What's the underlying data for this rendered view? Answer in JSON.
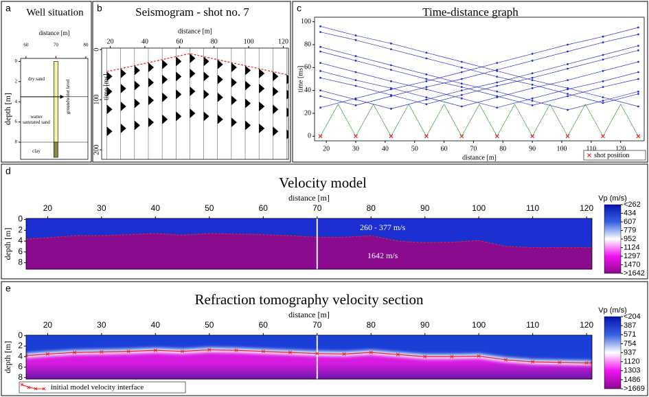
{
  "chart_data": [
    {
      "type": "well",
      "letter": "a",
      "title": "Well situation",
      "xlabel": "distance [m]",
      "ylabel": "depth [m]",
      "xlim": [
        58.2,
        80.7
      ],
      "xticks": [
        60,
        70,
        80
      ],
      "ylim": [
        -0.3,
        9.7
      ],
      "yticks": [
        0,
        2,
        4,
        6,
        8
      ],
      "xaxis": "top",
      "y_direction": "down",
      "layers": [
        {
          "label": "dry sand",
          "top": 0,
          "bottom": 3.5
        },
        {
          "label": "watter saturated sand",
          "top": 3.5,
          "bottom": 8
        },
        {
          "label": "clay",
          "top": 8,
          "bottom": 9.7
        }
      ],
      "well": {
        "x": [
          69.3,
          70.7
        ],
        "depth": [
          0,
          9.5
        ],
        "colors": [
          "#f4f0a0",
          "#8b8a45"
        ]
      },
      "groundwater_level": 3.5,
      "annotation": "groundwater level"
    },
    {
      "type": "seismogram",
      "letter": "b",
      "title": "Seismogram - shot no. 7",
      "xlabel": "distance [m]",
      "ylabel": "time [ms]",
      "xlim": [
        15,
        123
      ],
      "xticks": [
        20,
        40,
        60,
        80,
        100,
        120
      ],
      "ylim": [
        -3,
        219
      ],
      "yticks": [
        0,
        100,
        200
      ],
      "xaxis": "top",
      "y_direction": "down",
      "color": "#e0261f",
      "x": [
        18,
        26,
        34,
        42,
        50,
        58,
        66,
        74,
        82,
        90,
        98,
        106,
        114,
        122
      ],
      "values": [
        44,
        38,
        32,
        26,
        20,
        14,
        8,
        14,
        20,
        26,
        32,
        38,
        44,
        50
      ]
    },
    {
      "type": "line",
      "letter": "c",
      "title": "Time-distance graph",
      "xlabel": "distance [m]",
      "ylabel": "time [ms]",
      "xlim": [
        16,
        128
      ],
      "xticks": [
        20,
        30,
        40,
        50,
        60,
        70,
        80,
        90,
        100,
        110,
        120
      ],
      "ylim": [
        -4,
        104
      ],
      "yticks": [
        0,
        20,
        40,
        60,
        80,
        100
      ],
      "xaxis": "bottom",
      "legend": "lower-right",
      "x": [
        18,
        30,
        42,
        54,
        66,
        78,
        90,
        102,
        114,
        126
      ],
      "series": [
        {
          "color": "#2233cc",
          "marker": "dot",
          "values": [
            25,
            33,
            41,
            48,
            56,
            64,
            72,
            80,
            87,
            95
          ]
        },
        {
          "color": "#2233cc",
          "marker": "dot",
          "values": [
            35,
            27,
            35,
            43,
            50,
            58,
            66,
            74,
            82,
            89
          ]
        },
        {
          "color": "#2233cc",
          "marker": "dot",
          "values": [
            40,
            32,
            24,
            32,
            40,
            47,
            55,
            63,
            71,
            79
          ]
        },
        {
          "color": "#2233cc",
          "marker": "dot",
          "values": [
            51,
            44,
            36,
            28,
            36,
            44,
            51,
            59,
            67,
            75
          ]
        },
        {
          "color": "#2233cc",
          "marker": "dot",
          "values": [
            57,
            49,
            42,
            34,
            26,
            34,
            42,
            49,
            57,
            65
          ]
        },
        {
          "color": "#2233cc",
          "marker": "dot",
          "values": [
            64,
            56,
            48,
            41,
            33,
            25,
            33,
            41,
            48,
            56
          ]
        },
        {
          "color": "#2233cc",
          "marker": "dot",
          "values": [
            74,
            66,
            58,
            50,
            43,
            35,
            27,
            35,
            43,
            50
          ]
        },
        {
          "color": "#2233cc",
          "marker": "dot",
          "values": [
            78,
            70,
            62,
            54,
            46,
            39,
            31,
            23,
            31,
            39
          ]
        },
        {
          "color": "#2233cc",
          "marker": "dot",
          "values": [
            91,
            84,
            76,
            68,
            60,
            52,
            45,
            37,
            29,
            37
          ]
        },
        {
          "color": "#2233cc",
          "marker": "dot",
          "values": [
            96,
            88,
            81,
            73,
            65,
            57,
            49,
            42,
            34,
            26
          ]
        },
        {
          "color": "#3a9a3a",
          "marker": "none",
          "x": [
            18,
            24,
            30,
            36,
            42,
            48,
            54,
            60,
            66,
            72,
            78,
            84,
            90,
            96,
            102,
            108,
            114,
            120,
            126
          ],
          "values": [
            0,
            28,
            0,
            28,
            0,
            28,
            0,
            28,
            0,
            28,
            0,
            28,
            0,
            28,
            0,
            28,
            0,
            28,
            0
          ]
        },
        {
          "name": "shot position",
          "color": "#e0261f",
          "marker": "x",
          "values": [
            0,
            0,
            0,
            0,
            0,
            0,
            0,
            0,
            0,
            0
          ]
        }
      ]
    },
    {
      "type": "velocity-section",
      "letter": "d",
      "title": "Velocity model",
      "xlabel": "distance [m]",
      "ylabel": "depth [m]",
      "xlim": [
        16,
        121
      ],
      "xticks": [
        20,
        30,
        40,
        50,
        60,
        70,
        80,
        90,
        100,
        110,
        120
      ],
      "ylim": [
        -0.2,
        9.2
      ],
      "yticks": [
        0,
        2,
        4,
        6,
        8
      ],
      "xaxis": "top",
      "y_direction": "down",
      "well_x": 70,
      "layers": [
        {
          "label": "260 - 377 m/s",
          "color": "#1c30d2"
        },
        {
          "label": "1642 m/s",
          "color": "#8a0b8e"
        }
      ],
      "interface": {
        "color": "#e0261f",
        "x": [
          16,
          20,
          25,
          30,
          35,
          40,
          45,
          50,
          55,
          60,
          65,
          70,
          75,
          80,
          85,
          90,
          95,
          100,
          105,
          110,
          115,
          120,
          121
        ],
        "values": [
          3.6,
          3.4,
          3.0,
          3.0,
          2.8,
          2.6,
          2.9,
          2.6,
          2.7,
          2.8,
          3.0,
          3.3,
          3.3,
          3.0,
          4.0,
          4.3,
          4.2,
          3.9,
          5.0,
          5.2,
          5.2,
          5.2,
          5.2
        ]
      },
      "colorbar": {
        "title": "Vp (m/s)",
        "clim": [
          262,
          1642
        ],
        "colors": [
          "#0b12b0",
          "#3560e0",
          "#ffffff",
          "#f012f0",
          "#8a0b8e"
        ],
        "ticks": [
          {
            "value": 262,
            "label": "<262"
          },
          434,
          607,
          779,
          952,
          1124,
          1297,
          1470,
          {
            "value": 1642,
            "label": ">1642"
          }
        ]
      }
    },
    {
      "type": "tomography",
      "letter": "e",
      "title": "Refraction tomography velocity section",
      "xlabel": "distance [m]",
      "ylabel": "depth [m]",
      "xlim": [
        16,
        121
      ],
      "xticks": [
        20,
        30,
        40,
        50,
        60,
        70,
        80,
        90,
        100,
        110,
        120
      ],
      "ylim": [
        -0.1,
        8.3
      ],
      "yticks": [
        0,
        2,
        4,
        6,
        8
      ],
      "xaxis": "top",
      "y_direction": "down",
      "well_x": 70,
      "legend": "lower-left",
      "layer_colors": [
        "#1b3fd6",
        "#d81be0",
        "#6a16a8"
      ],
      "interface": {
        "name": "initial model velocity interface",
        "color": "#e0261f",
        "x": [
          16,
          20,
          25,
          30,
          35,
          40,
          45,
          50,
          55,
          60,
          65,
          70,
          75,
          80,
          85,
          90,
          95,
          100,
          105,
          110,
          115,
          120,
          121
        ],
        "values": [
          3.8,
          3.5,
          3.2,
          3.1,
          3.0,
          2.8,
          3.0,
          2.7,
          2.8,
          3.0,
          3.2,
          3.4,
          3.5,
          3.2,
          3.6,
          4.0,
          4.0,
          3.9,
          4.6,
          5.0,
          5.1,
          5.2,
          5.2
        ]
      },
      "colorbar": {
        "title": "Vp (m/s)",
        "clim": [
          204,
          1669
        ],
        "colors": [
          "#0b12b0",
          "#3560e0",
          "#ffffff",
          "#f012f0",
          "#8a0b8e"
        ],
        "ticks": [
          {
            "value": 204,
            "label": "<204"
          },
          387,
          571,
          754,
          937,
          1120,
          1303,
          1486,
          {
            "value": 1669,
            "label": ">1669"
          }
        ]
      }
    }
  ]
}
